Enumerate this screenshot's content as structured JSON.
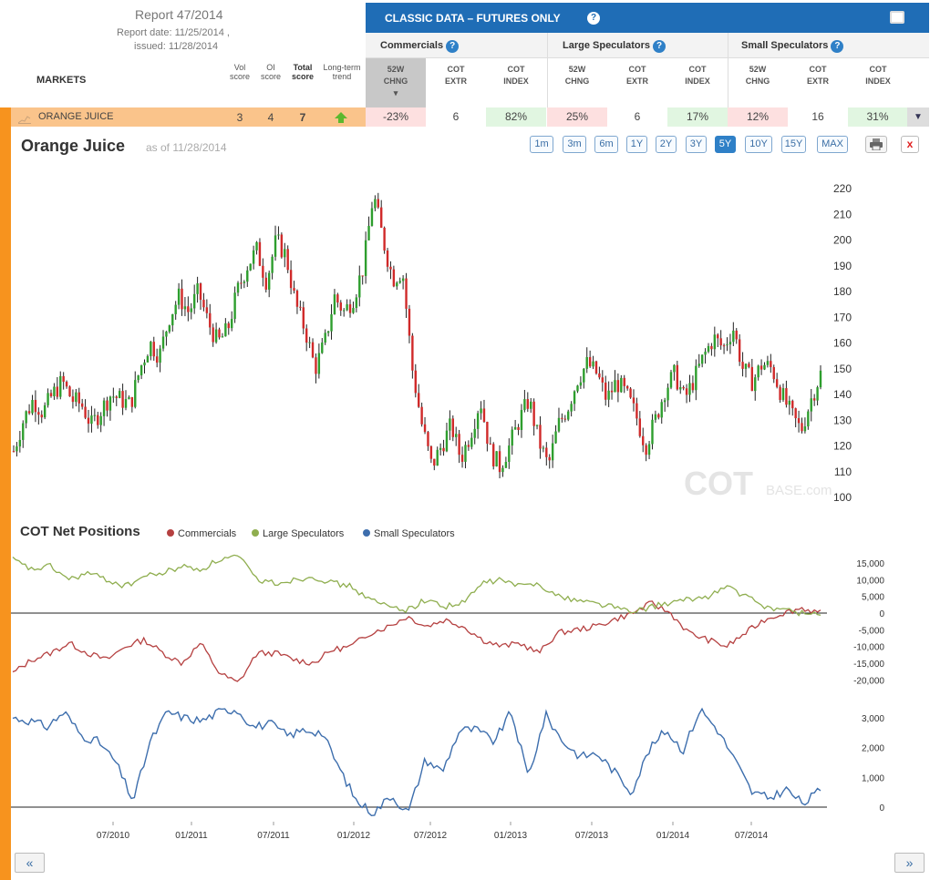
{
  "report": {
    "title": "Report 47/2014",
    "date_label": "Report date: 11/25/2014 ,",
    "issued_label": "issued: 11/28/2014"
  },
  "table_header": {
    "markets": "MARKETS",
    "vol_score": [
      "Vol",
      "score"
    ],
    "oi_score": [
      "OI",
      "score"
    ],
    "total_score": [
      "Total",
      "score"
    ],
    "trend": [
      "Long-term",
      "trend"
    ]
  },
  "classic": {
    "title": "CLASSIC DATA – FUTURES ONLY",
    "help": "?"
  },
  "groups": [
    {
      "label": "Commercials"
    },
    {
      "label": "Large Speculators"
    },
    {
      "label": "Small Speculators"
    }
  ],
  "subcols": [
    [
      "52W",
      "CHNG"
    ],
    [
      "COT",
      "EXTR"
    ],
    [
      "COT",
      "INDEX"
    ]
  ],
  "market_row": {
    "name": "ORANGE JUICE",
    "vol": "3",
    "oi": "4",
    "total": "7",
    "trend": "up",
    "cells": [
      {
        "v": "-23%",
        "tone": "neg"
      },
      {
        "v": "6",
        "tone": ""
      },
      {
        "v": "82%",
        "tone": "pos"
      },
      {
        "v": "25%",
        "tone": "neg"
      },
      {
        "v": "6",
        "tone": ""
      },
      {
        "v": "17%",
        "tone": "pos"
      },
      {
        "v": "12%",
        "tone": "neg"
      },
      {
        "v": "16",
        "tone": ""
      },
      {
        "v": "31%",
        "tone": "pos"
      }
    ]
  },
  "chart": {
    "title": "Orange Juice",
    "asof": "as of 11/28/2014",
    "ranges": [
      "1m",
      "3m",
      "6m",
      "1Y",
      "2Y",
      "3Y",
      "5Y",
      "10Y",
      "15Y",
      "MAX"
    ],
    "selected_range": "5Y",
    "close": "x",
    "watermark": "COT",
    "watermark_suffix": "BASE.com"
  },
  "cot": {
    "title": "COT Net Positions",
    "legend": [
      "Commercials",
      "Large Speculators",
      "Small Speculators"
    ]
  },
  "nav": {
    "prev": "«",
    "next": "»"
  },
  "colors": {
    "up": "#2e9e2e",
    "down": "#d02a2a",
    "commercials": "#b54040",
    "large": "#8fae4f",
    "small": "#3d6ead"
  },
  "chart_data": [
    {
      "type": "candlestick",
      "title": "Orange Juice",
      "x_ticks": [],
      "ylim": [
        100,
        220
      ],
      "y_ticks": [
        100,
        110,
        120,
        130,
        140,
        150,
        160,
        170,
        180,
        190,
        200,
        210,
        220
      ],
      "closes": [
        118,
        130,
        138,
        133,
        140,
        145,
        138,
        136,
        128,
        134,
        140,
        138,
        136,
        150,
        160,
        155,
        170,
        178,
        172,
        180,
        168,
        160,
        165,
        180,
        190,
        196,
        184,
        200,
        194,
        175,
        165,
        150,
        160,
        178,
        172,
        178,
        190,
        218,
        200,
        185,
        188,
        150,
        128,
        112,
        120,
        128,
        115,
        125,
        138,
        118,
        112,
        120,
        130,
        138,
        122,
        112,
        128,
        135,
        146,
        152,
        148,
        138,
        145,
        140,
        132,
        120,
        130,
        142,
        148,
        138,
        146,
        155,
        162,
        158,
        166,
        150,
        145,
        152,
        150,
        140,
        132,
        126,
        138,
        148
      ]
    },
    {
      "type": "line",
      "title": "COT Net Positions",
      "x_ticks": [
        "07/2010",
        "01/2011",
        "07/2011",
        "01/2012",
        "07/2012",
        "01/2013",
        "07/2013",
        "01/2014",
        "07/2014"
      ],
      "ylim": [
        -20000,
        15000
      ],
      "y_ticks": [
        -20000,
        -15000,
        -10000,
        -5000,
        0,
        5000,
        10000,
        15000
      ],
      "series": [
        {
          "name": "Commercials",
          "values": [
            -18000,
            -14000,
            -12000,
            -9000,
            -12000,
            -14000,
            -10000,
            -8000,
            -12000,
            -15000,
            -9000,
            -18000,
            -21000,
            -12000,
            -12000,
            -14000,
            -15000,
            -11000,
            -10000,
            -6000,
            -4000,
            -1000,
            -4000,
            -2000,
            -4000,
            -8000,
            -10000,
            -9000,
            -12000,
            -6000,
            -5000,
            -4000,
            -2000,
            0,
            3000,
            0,
            -6000,
            -8000,
            -10000,
            -6000,
            -2000,
            0,
            1500,
            0
          ]
        },
        {
          "name": "Large Speculators",
          "values": [
            16000,
            13000,
            14000,
            10000,
            12000,
            10000,
            8000,
            11000,
            12000,
            14000,
            13000,
            16000,
            17000,
            10000,
            9000,
            10000,
            11000,
            9000,
            8000,
            4000,
            2000,
            1000,
            4000,
            2000,
            3000,
            9000,
            10000,
            8000,
            9000,
            5000,
            4000,
            3000,
            2000,
            0,
            2000,
            3000,
            4000,
            5000,
            8000,
            5000,
            2000,
            1000,
            0,
            0
          ]
        }
      ]
    },
    {
      "type": "line",
      "ylim": [
        -500,
        3500
      ],
      "y_ticks": [
        0,
        1000,
        2000,
        3000
      ],
      "series": [
        {
          "name": "Small Speculators",
          "values": [
            3000,
            2900,
            2700,
            3200,
            2400,
            2200,
            1500,
            200,
            2200,
            3200,
            3000,
            2900,
            3200,
            3300,
            2700,
            2800,
            2400,
            2600,
            2500,
            1300,
            200,
            -200,
            400,
            -200,
            1600,
            1200,
            2600,
            2600,
            2200,
            3200,
            1000,
            3100,
            2200,
            1700,
            1800,
            1200,
            500,
            1900,
            2600,
            1900,
            3300,
            2600,
            1600,
            500,
            300,
            600,
            100,
            600
          ]
        }
      ]
    }
  ]
}
